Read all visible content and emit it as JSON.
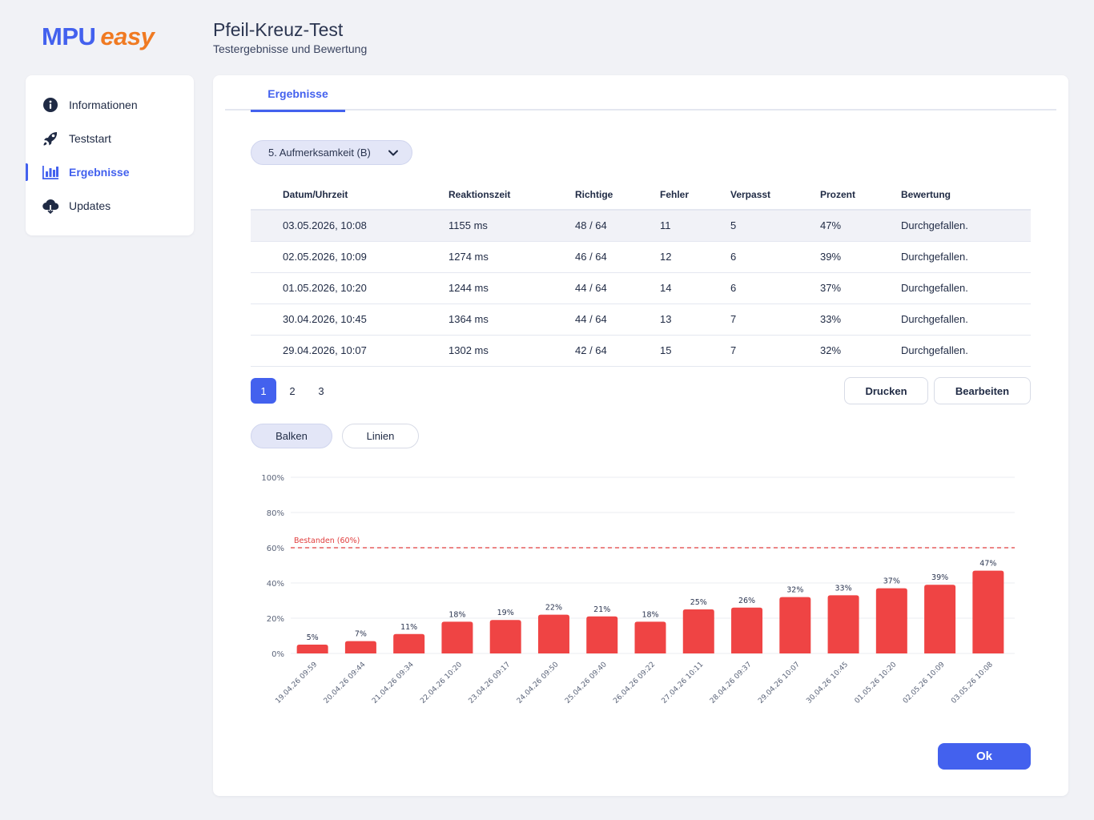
{
  "brand": {
    "part1": "MPU",
    "part2": "easy"
  },
  "header": {
    "title": "Pfeil-Kreuz-Test",
    "subtitle": "Testergebnisse und Bewertung"
  },
  "sidebar": {
    "items": [
      {
        "label": "Informationen",
        "icon": "info-icon",
        "active": false
      },
      {
        "label": "Teststart",
        "icon": "rocket-icon",
        "active": false
      },
      {
        "label": "Ergebnisse",
        "icon": "bar-chart-icon",
        "active": true
      },
      {
        "label": "Updates",
        "icon": "cloud-download-icon",
        "active": false
      }
    ]
  },
  "tabs": [
    {
      "label": "Ergebnisse",
      "active": true
    }
  ],
  "filter": {
    "selected": "5. Aufmerksamkeit (B)"
  },
  "table": {
    "columns": [
      "Datum/Uhrzeit",
      "Reaktionszeit",
      "Richtige",
      "Fehler",
      "Verpasst",
      "Prozent",
      "Bewertung"
    ],
    "rows": [
      [
        "03.05.2026, 10:08",
        "1155 ms",
        "48 / 64",
        "11",
        "5",
        "47%",
        "Durchgefallen."
      ],
      [
        "02.05.2026, 10:09",
        "1274 ms",
        "46 / 64",
        "12",
        "6",
        "39%",
        "Durchgefallen."
      ],
      [
        "01.05.2026, 10:20",
        "1244 ms",
        "44 / 64",
        "14",
        "6",
        "37%",
        "Durchgefallen."
      ],
      [
        "30.04.2026, 10:45",
        "1364 ms",
        "44 / 64",
        "13",
        "7",
        "33%",
        "Durchgefallen."
      ],
      [
        "29.04.2026, 10:07",
        "1302 ms",
        "42 / 64",
        "15",
        "7",
        "32%",
        "Durchgefallen."
      ]
    ]
  },
  "pagination": {
    "pages": [
      "1",
      "2",
      "3"
    ],
    "current": "1"
  },
  "actions": {
    "print": "Drucken",
    "edit": "Bearbeiten"
  },
  "view_toggle": {
    "bars": "Balken",
    "lines": "Linien",
    "selected": "bars"
  },
  "chart_data": {
    "type": "bar",
    "categories": [
      "19.04.26 09:59",
      "20.04.26 09:44",
      "21.04.26 09:34",
      "22.04.26 10:20",
      "23.04.26 09:17",
      "24.04.26 09:50",
      "25.04.26 09:40",
      "26.04.26 09:22",
      "27.04.26 10:11",
      "28.04.26 09:37",
      "29.04.26 10:07",
      "30.04.26 10:45",
      "01.05.26 10:20",
      "02.05.26 10:09",
      "03.05.26 10:08"
    ],
    "values": [
      5,
      7,
      11,
      18,
      19,
      22,
      21,
      18,
      25,
      26,
      32,
      33,
      37,
      39,
      47
    ],
    "value_labels": [
      "5%",
      "7%",
      "11%",
      "18%",
      "19%",
      "22%",
      "21%",
      "18%",
      "25%",
      "26%",
      "32%",
      "33%",
      "37%",
      "39%",
      "47%"
    ],
    "y_ticks": [
      0,
      20,
      40,
      60,
      80,
      100
    ],
    "y_tick_labels": [
      "0%",
      "20%",
      "40%",
      "60%",
      "80%",
      "100%"
    ],
    "ylim": [
      0,
      100
    ],
    "threshold": {
      "value": 60,
      "label": "Bestanden (60%)"
    },
    "bar_color": "#ef4444",
    "threshold_color": "#e03e3e",
    "grid": true
  },
  "footer": {
    "ok": "Ok"
  },
  "colors": {
    "accent": "#4361ee",
    "brand_orange": "#f07a22",
    "fail_red": "#ef4444"
  }
}
